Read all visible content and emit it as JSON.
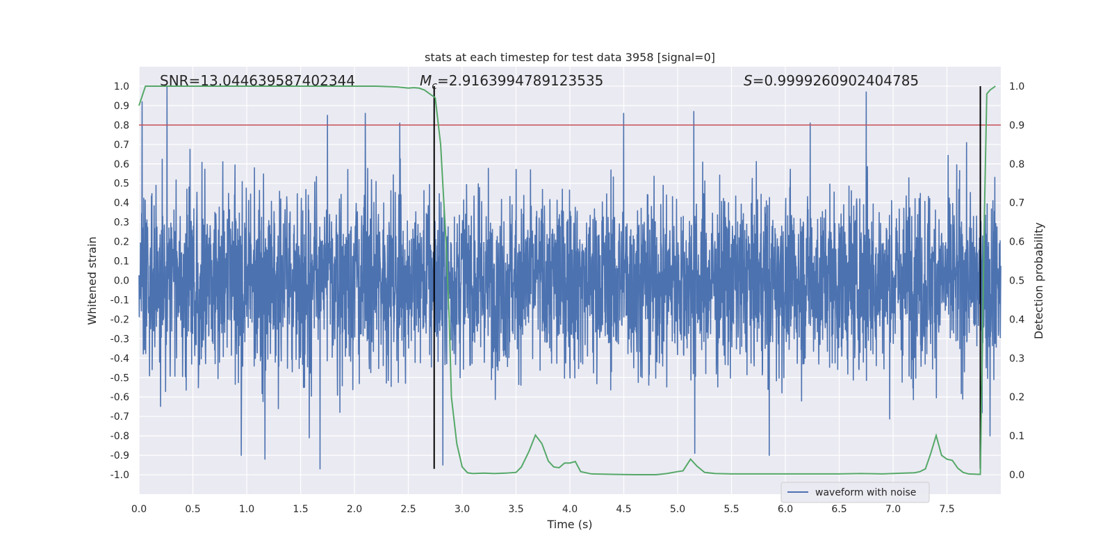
{
  "chart_data": {
    "type": "line",
    "title": "stats at each timestep for test data 3958 [signal=0]",
    "xlabel": "Time (s)",
    "ylabel_left": "Whitened strain",
    "ylabel_right": "Detection probability",
    "xlim": [
      0.0,
      8.0
    ],
    "ylim_left": [
      -1.1,
      1.1
    ],
    "ylim_right": [
      -0.05,
      1.05
    ],
    "x_ticks": [
      "0.0",
      "0.5",
      "1.0",
      "1.5",
      "2.0",
      "2.5",
      "3.0",
      "3.5",
      "4.0",
      "4.5",
      "5.0",
      "5.5",
      "6.0",
      "6.5",
      "7.0",
      "7.5"
    ],
    "y_left_ticks": [
      "-1.0",
      "-0.9",
      "-0.8",
      "-0.7",
      "-0.6",
      "-0.5",
      "-0.4",
      "-0.3",
      "-0.2",
      "-0.1",
      "0.0",
      "0.1",
      "0.2",
      "0.3",
      "0.4",
      "0.5",
      "0.6",
      "0.7",
      "0.8",
      "0.9",
      "1.0"
    ],
    "y_right_ticks": [
      "0.0",
      "0.1",
      "0.2",
      "0.3",
      "0.4",
      "0.5",
      "0.6",
      "0.7",
      "0.8",
      "0.9",
      "1.0"
    ],
    "grid": true,
    "legend_location": "lower-right",
    "annotations": {
      "snr": "SNR=13.044639587402344",
      "mc_symbol": "M",
      "mc_sub": "c",
      "mc_value": "=2.9163994789123535",
      "s_symbol": "S",
      "s_value": "=0.9999260902404785"
    },
    "series": [
      {
        "name": "waveform with noise",
        "axis": "left",
        "style": "dense-noise",
        "color": "#4c72b0",
        "x_range": [
          0.0,
          8.0
        ],
        "typical_amplitude": 0.45,
        "peak_values": [
          {
            "x": 0.03,
            "y": 0.92
          },
          {
            "x": 0.26,
            "y": 1.0
          },
          {
            "x": 1.75,
            "y": 0.85
          },
          {
            "x": 2.1,
            "y": 0.86
          },
          {
            "x": 2.42,
            "y": 0.81
          },
          {
            "x": 4.5,
            "y": 0.86
          },
          {
            "x": 5.15,
            "y": 0.87
          },
          {
            "x": 6.75,
            "y": 0.97
          },
          {
            "x": 6.23,
            "y": 0.81
          },
          {
            "x": 0.95,
            "y": -0.9
          },
          {
            "x": 1.17,
            "y": -0.92
          },
          {
            "x": 1.68,
            "y": -0.97
          },
          {
            "x": 1.58,
            "y": -0.81
          },
          {
            "x": 2.82,
            "y": -0.95
          },
          {
            "x": 5.16,
            "y": -0.89
          },
          {
            "x": 5.85,
            "y": -0.9
          },
          {
            "x": 7.9,
            "y": -0.8
          }
        ]
      },
      {
        "name": "detection probability",
        "axis": "right",
        "color": "#55a868",
        "x": [
          0.0,
          0.06,
          0.25,
          0.5,
          1.0,
          1.5,
          2.0,
          2.2,
          2.4,
          2.5,
          2.55,
          2.6,
          2.65,
          2.7,
          2.75,
          2.8,
          2.85,
          2.88,
          2.9,
          2.95,
          3.0,
          3.05,
          3.1,
          3.2,
          3.3,
          3.4,
          3.5,
          3.55,
          3.62,
          3.68,
          3.74,
          3.8,
          3.85,
          3.9,
          3.95,
          4.0,
          4.05,
          4.1,
          4.2,
          4.4,
          4.6,
          4.8,
          4.9,
          5.0,
          5.05,
          5.12,
          5.18,
          5.25,
          5.35,
          5.5,
          6.0,
          6.5,
          6.7,
          6.9,
          7.1,
          7.2,
          7.25,
          7.3,
          7.35,
          7.4,
          7.45,
          7.5,
          7.55,
          7.6,
          7.65,
          7.7,
          7.8,
          7.81,
          7.85,
          7.87,
          7.9,
          7.95
        ],
        "y": [
          0.95,
          1.0,
          1.0,
          1.0,
          1.0,
          1.0,
          1.0,
          1.0,
          0.998,
          0.995,
          0.996,
          0.995,
          0.99,
          0.98,
          0.97,
          0.85,
          0.6,
          0.4,
          0.2,
          0.08,
          0.02,
          0.005,
          0.003,
          0.004,
          0.003,
          0.004,
          0.006,
          0.02,
          0.06,
          0.102,
          0.08,
          0.035,
          0.02,
          0.018,
          0.03,
          0.03,
          0.034,
          0.008,
          0.002,
          0.001,
          0.0,
          0.0,
          0.003,
          0.008,
          0.01,
          0.04,
          0.022,
          0.006,
          0.003,
          0.002,
          0.002,
          0.002,
          0.003,
          0.002,
          0.004,
          0.005,
          0.008,
          0.015,
          0.055,
          0.101,
          0.05,
          0.04,
          0.037,
          0.017,
          0.006,
          0.002,
          0.001,
          0.001,
          0.7,
          0.98,
          0.99,
          1.0
        ]
      }
    ],
    "hlines": [
      {
        "axis": "right",
        "y": 0.9,
        "color": "#c44e52"
      }
    ],
    "vlines": [
      {
        "x": 2.74,
        "y_from": -0.97,
        "y_to": 1.0,
        "color": "#000000"
      },
      {
        "x": 7.81,
        "y_from": -0.97,
        "y_to": 1.0,
        "color": "#000000"
      }
    ]
  }
}
